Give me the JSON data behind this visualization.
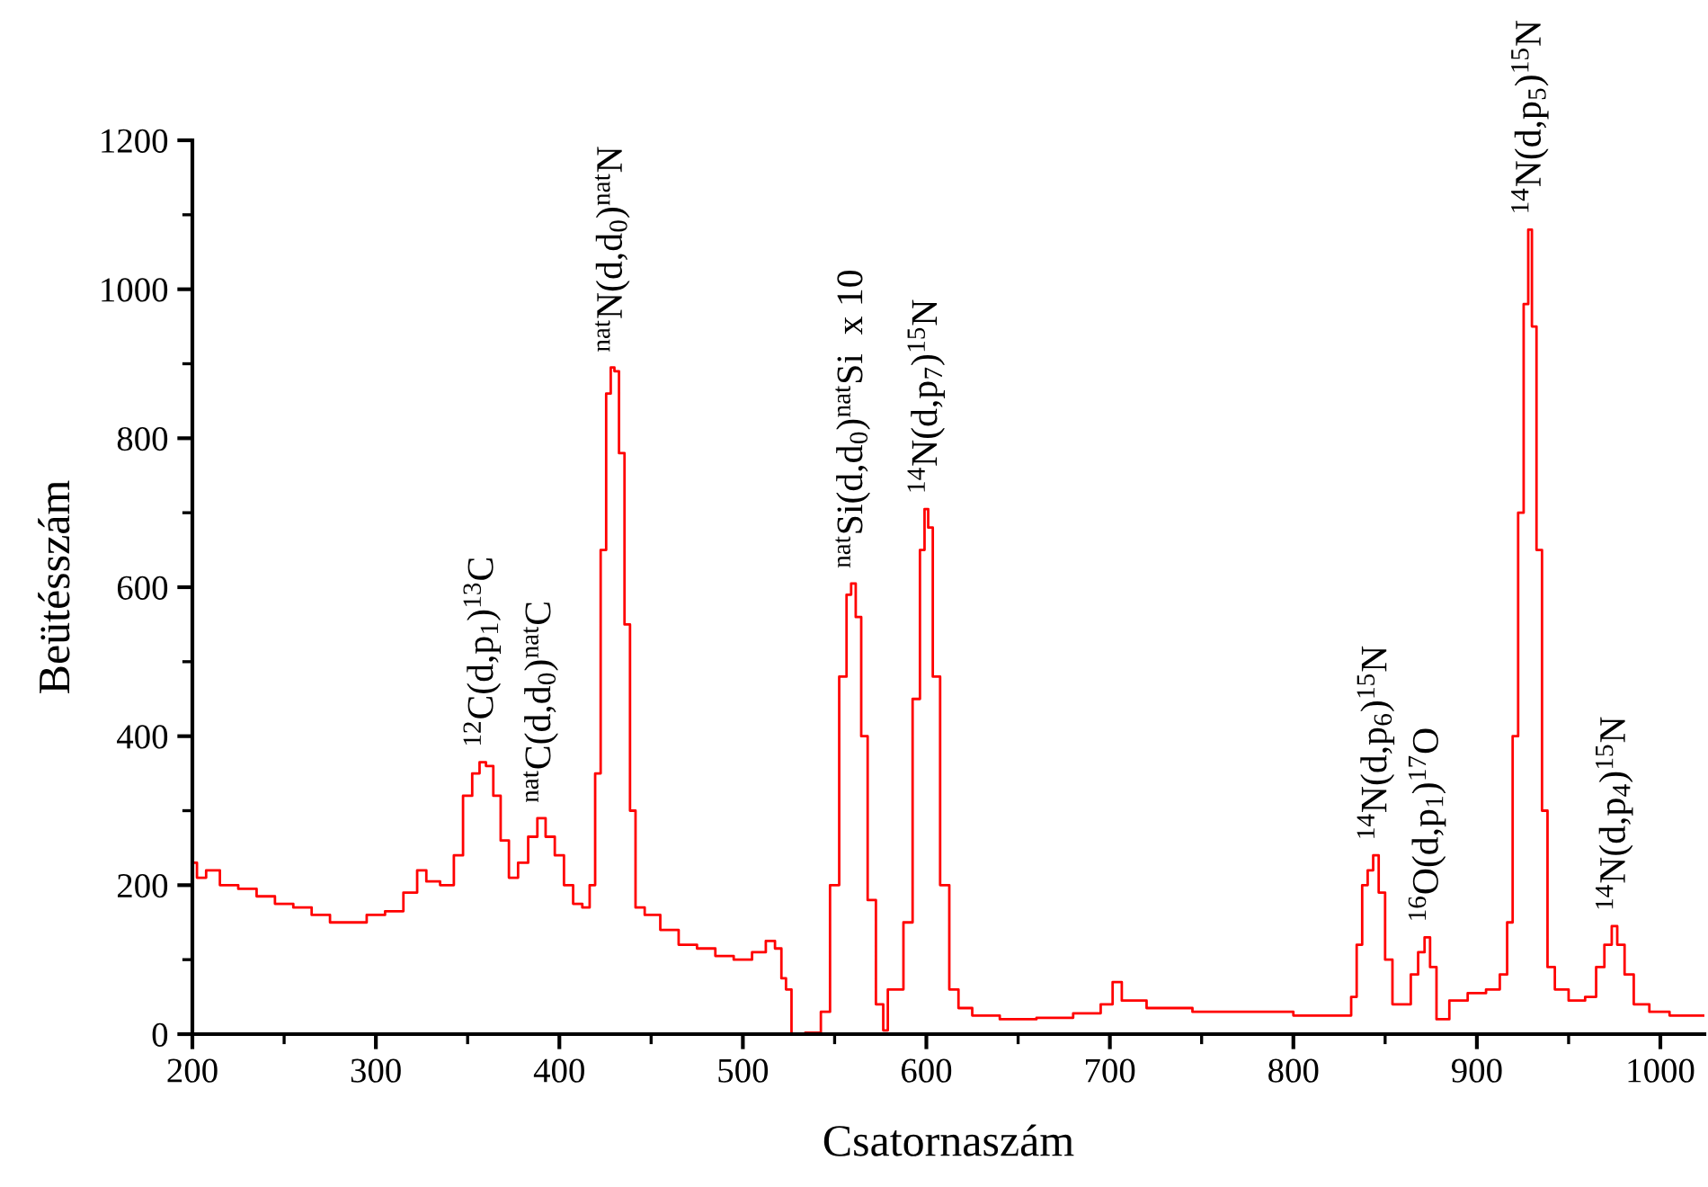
{
  "chart_data": {
    "type": "step",
    "xlabel": "Csatornaszám",
    "ylabel": "Beütésszám",
    "x": [
      200,
      205,
      210,
      220,
      230,
      240,
      250,
      260,
      270,
      280,
      290,
      300,
      310,
      320,
      325,
      330,
      340,
      345,
      350,
      355,
      358,
      362,
      366,
      370,
      375,
      380,
      386,
      390,
      395,
      400,
      405,
      410,
      415,
      418,
      421,
      424,
      427,
      429,
      431,
      434,
      437,
      440,
      443,
      450,
      460,
      470,
      480,
      490,
      500,
      510,
      515,
      520,
      522,
      525,
      528,
      540,
      545,
      550,
      555,
      558,
      560,
      563,
      566,
      570,
      575,
      578,
      580,
      585,
      590,
      595,
      598,
      600,
      602,
      605,
      610,
      615,
      620,
      630,
      650,
      670,
      690,
      700,
      703,
      710,
      730,
      760,
      790,
      810,
      830,
      833,
      836,
      839,
      842,
      845,
      848,
      852,
      856,
      862,
      866,
      870,
      873,
      876,
      880,
      890,
      900,
      910,
      915,
      918,
      921,
      924,
      927,
      929,
      931,
      934,
      937,
      940,
      945,
      955,
      963,
      967,
      972,
      975,
      978,
      983,
      988,
      1000,
      1010,
      1020,
      1024
    ],
    "series": [
      {
        "color": "#ff0000",
        "values": [
          230,
          210,
          220,
          200,
          195,
          185,
          175,
          170,
          160,
          150,
          150,
          160,
          165,
          190,
          220,
          205,
          200,
          240,
          320,
          350,
          365,
          360,
          320,
          260,
          210,
          230,
          265,
          290,
          265,
          240,
          200,
          175,
          170,
          200,
          350,
          650,
          860,
          895,
          890,
          780,
          550,
          300,
          170,
          160,
          140,
          120,
          115,
          105,
          100,
          110,
          125,
          115,
          75,
          60,
          0,
          2,
          30,
          200,
          480,
          590,
          605,
          560,
          400,
          180,
          40,
          5,
          60,
          60,
          150,
          450,
          650,
          705,
          680,
          480,
          200,
          60,
          35,
          25,
          20,
          22,
          28,
          40,
          70,
          45,
          35,
          30,
          30,
          25,
          25,
          50,
          120,
          200,
          220,
          240,
          190,
          100,
          40,
          40,
          80,
          110,
          130,
          90,
          20,
          45,
          55,
          60,
          80,
          150,
          400,
          700,
          980,
          1080,
          950,
          650,
          300,
          90,
          60,
          45,
          50,
          90,
          120,
          145,
          120,
          80,
          40,
          30,
          25,
          25,
          25
        ]
      }
    ],
    "xlim": [
      200,
      1024
    ],
    "xticks": [
      200,
      300,
      400,
      500,
      600,
      700,
      800,
      900,
      1000
    ],
    "ylim": [
      0,
      1200
    ],
    "yticks": [
      0,
      200,
      400,
      600,
      800,
      1000,
      1200
    ],
    "grid": false,
    "legend": false,
    "annotations": [
      {
        "text": "$^{12}$C(d,p$_{1}$)$^{13}$C",
        "x": 358,
        "y": 365
      },
      {
        "text": "$^{nat}$C(d,d$_{0}$)$^{nat}$C",
        "x": 390,
        "y": 290
      },
      {
        "text": "$^{nat}$N(d,d$_{0}$)$^{nat}$N",
        "x": 429,
        "y": 895
      },
      {
        "text": "$^{nat}$Si(d,d$_{0}$)$^{nat}$Si  x 10",
        "x": 560,
        "y": 605
      },
      {
        "text": "$^{14}$N(d,p$_{7}$)$^{15}$N",
        "x": 600,
        "y": 705
      },
      {
        "text": "$^{14}$N(d,p$_{6}$)$^{15}$N",
        "x": 845,
        "y": 240
      },
      {
        "text": "$^{16}$O(d,p$_{1}$)$^{17}$O",
        "x": 873,
        "y": 130
      },
      {
        "text": "$^{14}$N(d,p$_{5}$)$^{15}$N",
        "x": 929,
        "y": 1080
      },
      {
        "text": "$^{14}$N(d,p$_{4}$)$^{15}$N",
        "x": 975,
        "y": 145
      }
    ]
  }
}
